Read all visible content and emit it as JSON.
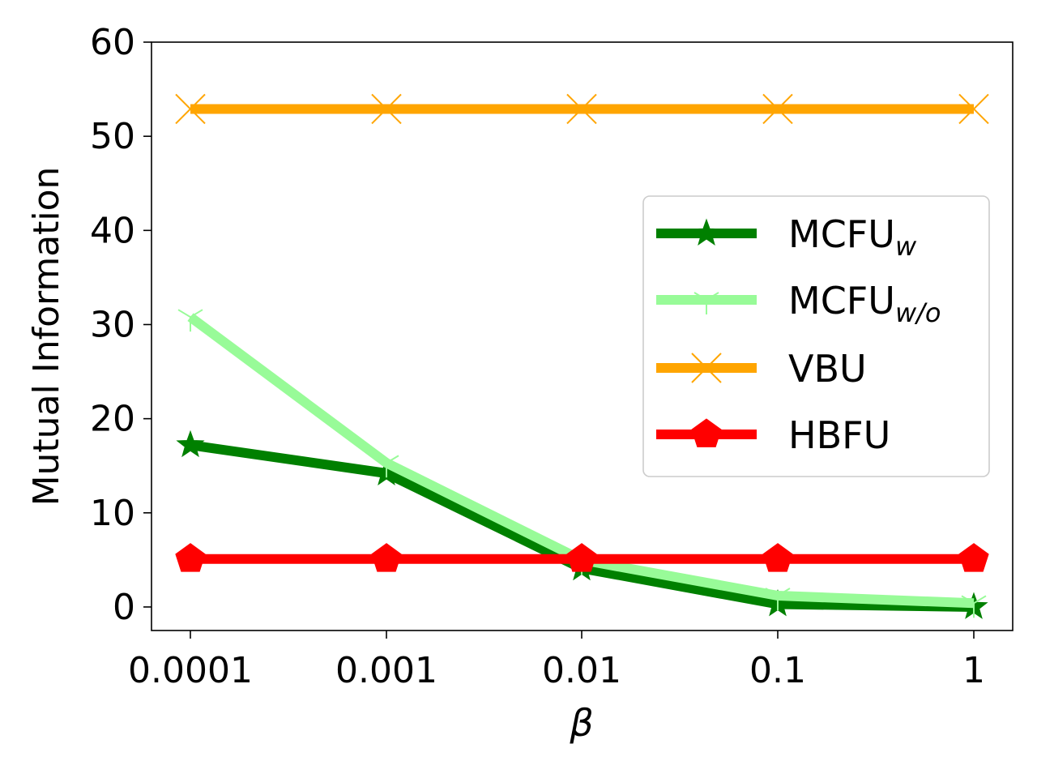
{
  "chart_data": {
    "type": "line",
    "title": "",
    "xlabel": "β",
    "ylabel": "Mutual Information",
    "x_scale": "log",
    "categories": [
      "0.0001",
      "0.001",
      "0.01",
      "0.1",
      "1"
    ],
    "x": [
      0.0001,
      0.001,
      0.01,
      0.1,
      1
    ],
    "ylim": [
      -2.5,
      60
    ],
    "yticks": [
      0,
      10,
      20,
      30,
      40,
      50,
      60
    ],
    "grid": false,
    "legend_position": "center-right",
    "series": [
      {
        "name": "MCFU",
        "subscript": "w",
        "color": "#008000",
        "marker": "star",
        "values": [
          17.2,
          14.2,
          4.1,
          0.3,
          0.0
        ]
      },
      {
        "name": "MCFU",
        "subscript": "w/o",
        "color": "#98fb98",
        "marker": "tri",
        "values": [
          30.8,
          15.3,
          5.0,
          1.2,
          0.4
        ]
      },
      {
        "name": "VBU",
        "subscript": "",
        "color": "#ffa500",
        "marker": "x",
        "values": [
          52.9,
          52.9,
          52.9,
          52.9,
          52.9
        ]
      },
      {
        "name": "HBFU",
        "subscript": "",
        "color": "#ff0000",
        "marker": "pentagon",
        "values": [
          5.1,
          5.1,
          5.1,
          5.1,
          5.1
        ]
      }
    ]
  }
}
